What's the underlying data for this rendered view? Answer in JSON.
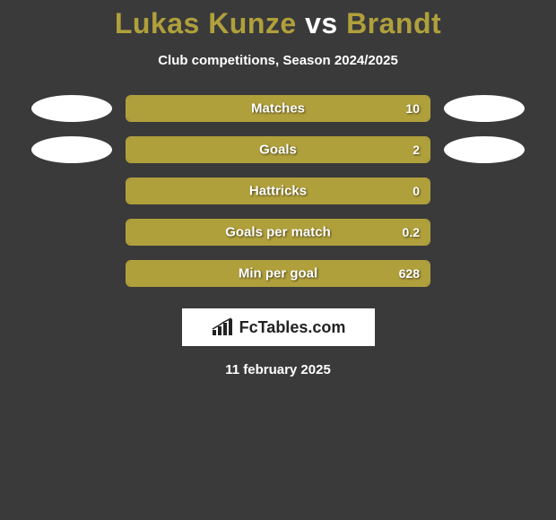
{
  "title": {
    "player1": "Lukas Kunze",
    "vs": "vs",
    "player2": "Brandt"
  },
  "subtitle": "Club competitions, Season 2024/2025",
  "colors": {
    "player1": "#b0a03c",
    "player2": "#b0a03c",
    "background": "#3a3a3a",
    "bar_border": "#b0a03c",
    "text": "#ffffff",
    "oval": "#ffffff"
  },
  "bar": {
    "track_width": 340,
    "track_height": 30,
    "border_radius": 6,
    "label_fontsize": 15,
    "value_fontsize": 14
  },
  "stats": [
    {
      "label": "Matches",
      "value_left": "",
      "value_right": "10",
      "fill_left_pct": 0,
      "fill_right_pct": 100,
      "show_left_oval": true,
      "show_right_oval": true
    },
    {
      "label": "Goals",
      "value_left": "",
      "value_right": "2",
      "fill_left_pct": 0,
      "fill_right_pct": 100,
      "show_left_oval": true,
      "show_right_oval": true
    },
    {
      "label": "Hattricks",
      "value_left": "",
      "value_right": "0",
      "fill_left_pct": 0,
      "fill_right_pct": 100,
      "show_left_oval": false,
      "show_right_oval": false
    },
    {
      "label": "Goals per match",
      "value_left": "",
      "value_right": "0.2",
      "fill_left_pct": 0,
      "fill_right_pct": 100,
      "show_left_oval": false,
      "show_right_oval": false
    },
    {
      "label": "Min per goal",
      "value_left": "",
      "value_right": "628",
      "fill_left_pct": 0,
      "fill_right_pct": 100,
      "show_left_oval": false,
      "show_right_oval": false
    }
  ],
  "logo": {
    "text": "FcTables.com"
  },
  "date": "11 february 2025"
}
